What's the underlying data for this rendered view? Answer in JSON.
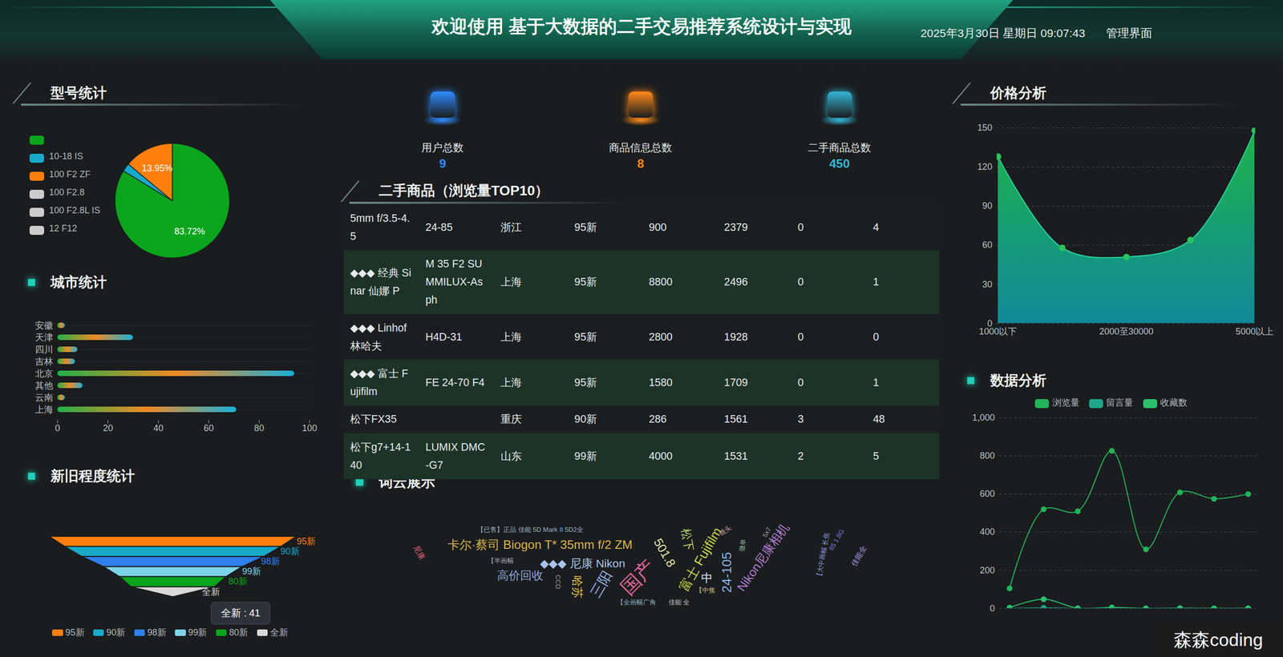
{
  "header": {
    "title": "欢迎使用 基于大数据的二手交易推荐系统设计与实现",
    "datetime": "2025年3月30日 星期日 09:07:43",
    "role": "管理界面"
  },
  "kpis": [
    {
      "label": "用户总数",
      "value": 9,
      "color": "#2f8cff"
    },
    {
      "label": "商品信息总数",
      "value": 8,
      "color": "#ff8a1a"
    },
    {
      "label": "二手商品总数",
      "value": 450,
      "color": "#35b6d6"
    }
  ],
  "chart_data": [
    {
      "type": "pie",
      "title": "型号统计",
      "categories": [
        null,
        "10-18 IS",
        "100 F2 ZF",
        "100 F2.8",
        "100 F2.8L IS",
        "12 F12"
      ],
      "values": [
        83.72,
        2.33,
        13.95,
        null,
        null,
        null
      ],
      "value_labels": [
        "83.72%",
        null,
        "13.95%",
        null,
        null,
        null
      ],
      "colors": [
        "#0aa51c",
        "#19a9c9",
        "#ff7f0e",
        "#cccccc",
        "#cccccc",
        "#cccccc"
      ],
      "data_labels": true,
      "legend": "top-left"
    },
    {
      "type": "bar",
      "title": "城市统计",
      "orientation": "horizontal",
      "categories": [
        "安徽",
        "天津",
        "四川",
        "吉林",
        "北京",
        "其他",
        "云南",
        "上海"
      ],
      "values": [
        3,
        30,
        8,
        7,
        94,
        10,
        3,
        71
      ],
      "xlim": [
        0,
        100
      ],
      "xticks": [
        0,
        20,
        40,
        60,
        80,
        100
      ],
      "grid": true
    },
    {
      "type": "funnel",
      "title": "新旧程度统计",
      "categories": [
        "95新",
        "90新",
        "98新",
        "99新",
        "80新",
        "全新"
      ],
      "values": [
        121,
        106,
        89,
        68,
        52,
        41
      ],
      "colors": [
        "#ff7f0e",
        "#19a9c9",
        "#2f80ed",
        "#7fd3e8",
        "#0aa51c",
        "#d9d9d9"
      ],
      "legend": "bottom",
      "annotations": [
        "全新 : 41"
      ]
    },
    {
      "type": "area",
      "title": "价格分析",
      "categories": [
        "1000以下",
        null,
        "2000至30000",
        null,
        "5000以上"
      ],
      "values": [
        128,
        58,
        51,
        64,
        148
      ],
      "ylim": [
        0,
        150
      ],
      "yticks": [
        0,
        30,
        60,
        90,
        120,
        150
      ],
      "grid": true,
      "marker": "circle"
    },
    {
      "type": "line",
      "title": "数据分析",
      "categories": [
        null,
        null,
        null,
        null,
        null,
        null,
        null,
        null
      ],
      "series": [
        {
          "name": "浏览量",
          "color": "#23b35a",
          "values": [
            105,
            520,
            510,
            827,
            310,
            609,
            575,
            600
          ]
        },
        {
          "name": "留言量",
          "color": "#1fa58a",
          "values": [
            0,
            3,
            0,
            2,
            0,
            1,
            0,
            0
          ]
        },
        {
          "name": "收藏数",
          "color": "#2bbf6e",
          "values": [
            4,
            48,
            1,
            5,
            0,
            1,
            0,
            1
          ]
        }
      ],
      "ylim": [
        0,
        1000
      ],
      "yticks": [
        0,
        200,
        400,
        600,
        800,
        {
          "value": 1000,
          "label": "1,000"
        }
      ],
      "grid": true,
      "legend": "top",
      "tick_labels": "y",
      "marker": "circle"
    }
  ],
  "table": {
    "title": "二手商品（浏览量TOP10）",
    "rows": [
      [
        "5mm f/3.5-4.5",
        "24-85",
        "浙江",
        "95新",
        "900",
        "2379",
        "0",
        "4"
      ],
      [
        "◆◆◆ 经典 Sinar 仙娜 P",
        "M 35 F2 SUMMILUX-Asph",
        "上海",
        "95新",
        "8800",
        "2496",
        "0",
        "1"
      ],
      [
        "◆◆◆ Linhof 林哈夫",
        "H4D-31",
        "上海",
        "95新",
        "2800",
        "1928",
        "0",
        "0"
      ],
      [
        "◆◆◆ 富士 Fujifilm",
        "FE 24-70 F4",
        "上海",
        "95新",
        "1580",
        "1709",
        "0",
        "1"
      ],
      [
        "松下FX35",
        "",
        "重庆",
        "90新",
        "286",
        "1561",
        "3",
        "48"
      ],
      [
        "松下g7+14-140",
        "LUMIX DMC-G7",
        "山东",
        "99新",
        "4000",
        "1531",
        "2",
        "5"
      ]
    ]
  },
  "wordcloud": {
    "title": "词云展示",
    "words": [
      "【已售】正品 佳能 5D Mark II 5D2全",
      "卡尔·蔡司 Biogon T* 35mm f/2 ZM",
      "◆◆◆ 尼康 Nikon",
      "高价回收",
      "国产",
      "501.8",
      "松下",
      "富士 Fujifilm",
      "三阳",
      "哈苏",
      "24-105",
      "中",
      "Nikon尼康相机",
      "【半画幅",
      "【全画幅广角",
      "佳能 全",
      "【中焦",
      "尼康",
      "【大中画幅 长焦",
      "85 1.8G",
      "5x7",
      "镜头",
      "佳能全",
      "CCD",
      "微单"
    ]
  },
  "watermark": "森森coding"
}
